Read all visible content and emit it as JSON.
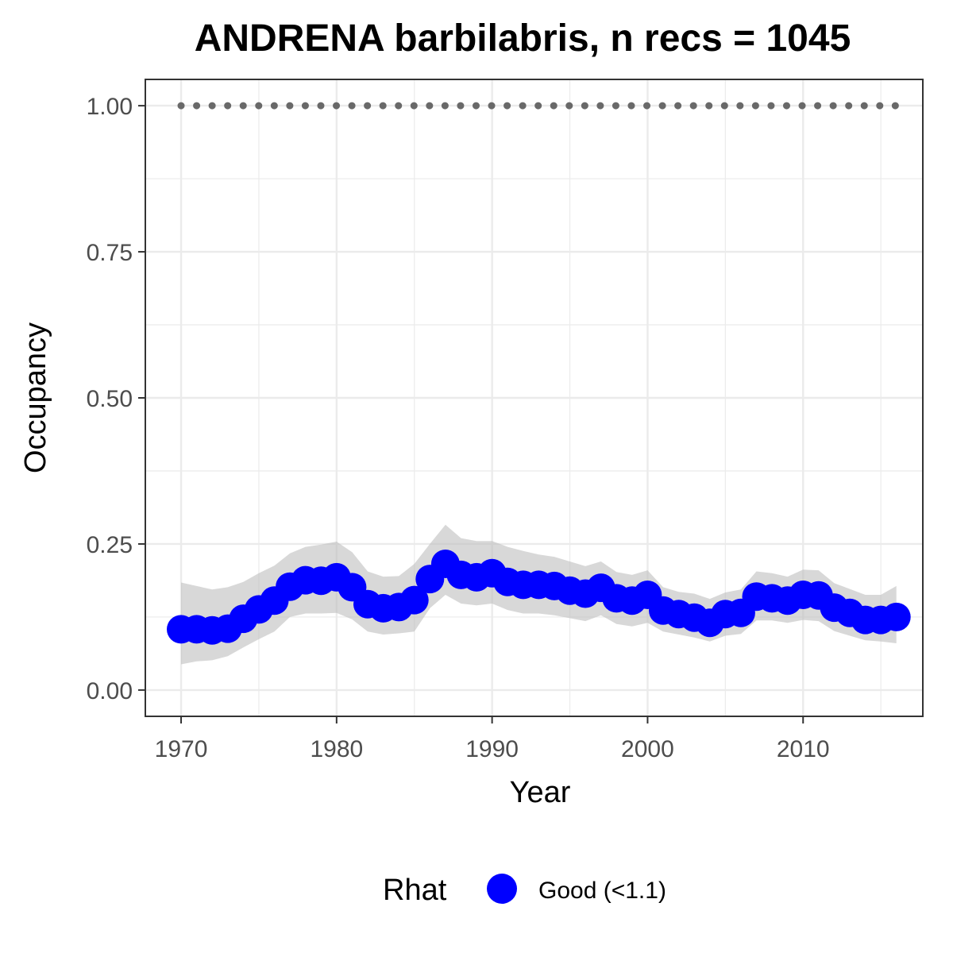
{
  "chart_data": {
    "type": "line",
    "title": "ANDRENA barbilabris, n recs = 1045",
    "xlabel": "Year",
    "ylabel": "Occupancy",
    "xlim": [
      1967.7,
      2017.7
    ],
    "ylim": [
      -0.045,
      1.045
    ],
    "x_ticks": [
      1970,
      1980,
      1990,
      2000,
      2010
    ],
    "x_tick_labels": [
      "1970",
      "1980",
      "1990",
      "2000",
      "2010"
    ],
    "y_ticks": [
      0,
      0.25,
      0.5,
      0.75,
      1.0
    ],
    "y_tick_labels": [
      "0.00",
      "0.25",
      "0.50",
      "0.75",
      "1.00"
    ],
    "grid": true,
    "legend": {
      "title": "Rhat",
      "position": "bottom",
      "entries": [
        "Good (<1.1)"
      ]
    },
    "colors": {
      "points": "#0000ff",
      "ribbon": "#bebebe",
      "reference": "#696969",
      "panel_border": "#333333",
      "grid": "#ebebeb"
    },
    "x": [
      1970,
      1971,
      1972,
      1973,
      1974,
      1975,
      1976,
      1977,
      1978,
      1979,
      1980,
      1981,
      1982,
      1983,
      1984,
      1985,
      1986,
      1987,
      1988,
      1989,
      1990,
      1991,
      1992,
      1993,
      1994,
      1995,
      1996,
      1997,
      1998,
      1999,
      2000,
      2001,
      2002,
      2003,
      2004,
      2005,
      2006,
      2007,
      2008,
      2009,
      2010,
      2011,
      2012,
      2013,
      2014,
      2015,
      2016
    ],
    "series": [
      {
        "values": [
          0.104,
          0.104,
          0.102,
          0.105,
          0.122,
          0.138,
          0.153,
          0.177,
          0.188,
          0.187,
          0.193,
          0.176,
          0.147,
          0.14,
          0.142,
          0.154,
          0.19,
          0.216,
          0.197,
          0.193,
          0.2,
          0.185,
          0.18,
          0.18,
          0.178,
          0.17,
          0.165,
          0.175,
          0.157,
          0.153,
          0.163,
          0.136,
          0.13,
          0.124,
          0.115,
          0.13,
          0.132,
          0.16,
          0.157,
          0.153,
          0.163,
          0.162,
          0.141,
          0.132,
          0.12,
          0.12,
          0.125
        ],
        "lower": [
          0.044,
          0.049,
          0.051,
          0.058,
          0.073,
          0.087,
          0.1,
          0.125,
          0.131,
          0.131,
          0.132,
          0.121,
          0.1,
          0.095,
          0.097,
          0.1,
          0.14,
          0.163,
          0.148,
          0.145,
          0.148,
          0.137,
          0.131,
          0.131,
          0.128,
          0.123,
          0.118,
          0.128,
          0.113,
          0.109,
          0.115,
          0.1,
          0.095,
          0.09,
          0.083,
          0.093,
          0.096,
          0.119,
          0.119,
          0.115,
          0.12,
          0.118,
          0.101,
          0.093,
          0.085,
          0.083,
          0.08
        ],
        "upper": [
          0.184,
          0.178,
          0.172,
          0.176,
          0.185,
          0.2,
          0.213,
          0.234,
          0.245,
          0.249,
          0.254,
          0.236,
          0.203,
          0.194,
          0.195,
          0.216,
          0.25,
          0.283,
          0.26,
          0.255,
          0.255,
          0.245,
          0.238,
          0.232,
          0.228,
          0.22,
          0.212,
          0.22,
          0.202,
          0.197,
          0.205,
          0.176,
          0.168,
          0.165,
          0.156,
          0.167,
          0.172,
          0.203,
          0.2,
          0.194,
          0.206,
          0.205,
          0.183,
          0.173,
          0.163,
          0.163,
          0.178
        ]
      },
      {
        "values_constant": 1.0,
        "x_from": 1970,
        "x_to": 2016
      }
    ]
  }
}
